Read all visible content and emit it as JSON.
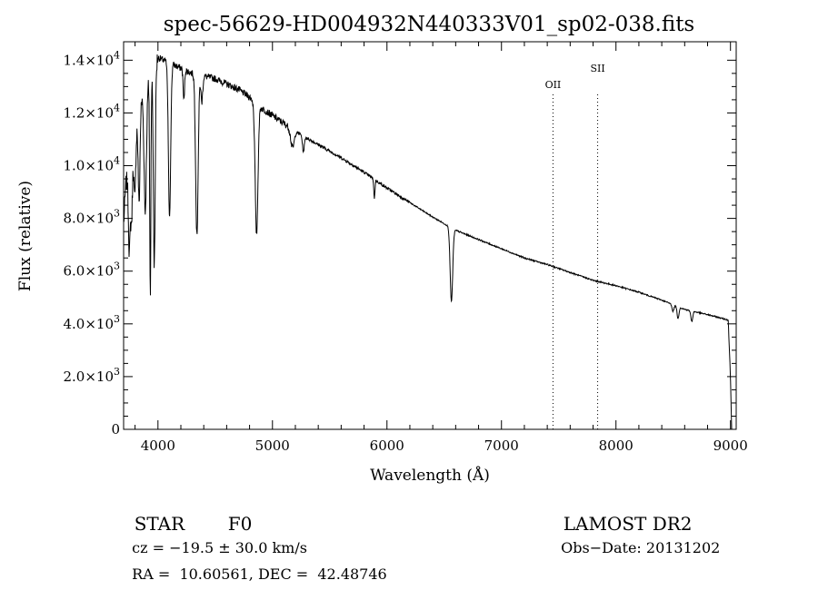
{
  "chart_data": {
    "type": "line",
    "title": "spec-56629-HD004932N440333V01_sp02-038.fits",
    "xlabel": "Wavelength (Å)",
    "ylabel": "Flux (relative)",
    "xlim": [
      3700,
      9050
    ],
    "ylim": [
      0,
      14700
    ],
    "x_ticks": [
      4000,
      5000,
      6000,
      7000,
      8000,
      9000
    ],
    "y_ticks": [
      {
        "value": 0,
        "mantissa": "0",
        "exponent": ""
      },
      {
        "value": 2000,
        "mantissa": "2.0×10",
        "exponent": "3"
      },
      {
        "value": 4000,
        "mantissa": "4.0×10",
        "exponent": "3"
      },
      {
        "value": 6000,
        "mantissa": "6.0×10",
        "exponent": "3"
      },
      {
        "value": 8000,
        "mantissa": "8.0×10",
        "exponent": "3"
      },
      {
        "value": 10000,
        "mantissa": "1.0×10",
        "exponent": "4"
      },
      {
        "value": 12000,
        "mantissa": "1.2×10",
        "exponent": "4"
      },
      {
        "value": 14000,
        "mantissa": "1.4×10",
        "exponent": "4"
      }
    ],
    "grid": false,
    "line_color": "#000000",
    "series": [
      {
        "continuum": [
          [
            3700,
            7800
          ],
          [
            3720,
            9300
          ],
          [
            3780,
            10800
          ],
          [
            3820,
            11800
          ],
          [
            3850,
            12400
          ],
          [
            3900,
            12900
          ],
          [
            3950,
            13500
          ],
          [
            4000,
            14100
          ],
          [
            4100,
            13900
          ],
          [
            4200,
            13700
          ],
          [
            4300,
            13500
          ],
          [
            4400,
            13400
          ],
          [
            4500,
            13300
          ],
          [
            4600,
            13100
          ],
          [
            4700,
            12900
          ],
          [
            4800,
            12600
          ],
          [
            4900,
            12200
          ],
          [
            5000,
            11900
          ],
          [
            5200,
            11300
          ],
          [
            5400,
            10800
          ],
          [
            5600,
            10300
          ],
          [
            5800,
            9750
          ],
          [
            6000,
            9150
          ],
          [
            6200,
            8600
          ],
          [
            6400,
            8050
          ],
          [
            6600,
            7550
          ],
          [
            6800,
            7200
          ],
          [
            7000,
            6850
          ],
          [
            7200,
            6500
          ],
          [
            7400,
            6250
          ],
          [
            7600,
            5950
          ],
          [
            7800,
            5650
          ],
          [
            8000,
            5450
          ],
          [
            8200,
            5200
          ],
          [
            8400,
            4900
          ],
          [
            8600,
            4550
          ],
          [
            8800,
            4350
          ],
          [
            8980,
            4150
          ],
          [
            9000,
            2000
          ],
          [
            9010,
            0
          ]
        ],
        "absorption_lines": [
          [
            3750,
            3200,
            8
          ],
          [
            3770,
            2500,
            8
          ],
          [
            3798,
            2500,
            8
          ],
          [
            3835,
            3500,
            8
          ],
          [
            3889,
            4500,
            10
          ],
          [
            3933,
            8200,
            5
          ],
          [
            3968,
            7500,
            8
          ],
          [
            4101,
            5800,
            10
          ],
          [
            4226,
            1200,
            6
          ],
          [
            4340,
            6100,
            11
          ],
          [
            4383,
            1000,
            8
          ],
          [
            4861,
            5000,
            12
          ],
          [
            5175,
            700,
            15
          ],
          [
            5270,
            600,
            8
          ],
          [
            5890,
            700,
            5
          ],
          [
            6563,
            2800,
            11
          ],
          [
            8498,
            250,
            8
          ],
          [
            8542,
            450,
            8
          ],
          [
            8662,
            400,
            8
          ]
        ]
      }
    ],
    "annotations": [
      {
        "label": "OII",
        "x": 7450
      },
      {
        "label": "SII",
        "x": 7840
      }
    ]
  },
  "info": {
    "object_class": "STAR",
    "subclass": "F0",
    "survey": "LAMOST DR2",
    "cz": "cz = −19.5 ± 30.0 km/s",
    "obs_date": "Obs−Date: 20131202",
    "coords": "RA =  10.60561, DEC =  42.48746"
  }
}
